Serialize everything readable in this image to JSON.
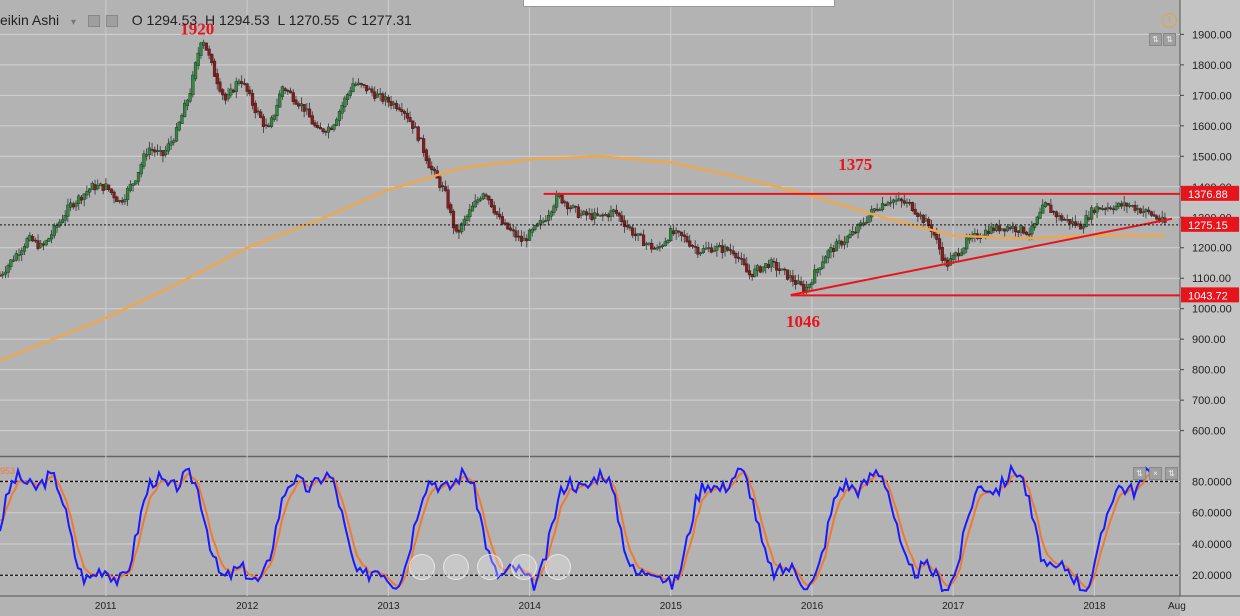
{
  "header": {
    "symbol": "eikin Ashi",
    "open": "O 1294.53",
    "high": "H 1294.53",
    "low": "L 1270.55",
    "close": "C 1277.31"
  },
  "colors": {
    "background": "#b3b3b3",
    "bull_candle": "#2e8b3e",
    "bear_candle": "#8b1a1a",
    "moving_average": "#f0a64a",
    "annotation_red": "#e8141c",
    "stoch_k": "#1a1aff",
    "stoch_d": "#f07a30"
  },
  "chart_data": [
    {
      "type": "candlestick",
      "style": "heikin-ashi",
      "x_range": [
        2010.25,
        2018.55
      ],
      "ylim": [
        520,
        1980
      ],
      "x_ticks": [
        "2011",
        "2012",
        "2013",
        "2014",
        "2015",
        "2016",
        "2017",
        "2018",
        "Aug"
      ],
      "y_ticks": [
        "600.00",
        "700.00",
        "800.00",
        "900.00",
        "1000.00",
        "1100.00",
        "1200.00",
        "1300.00",
        "1400.00",
        "1500.00",
        "1600.00",
        "1700.00",
        "1800.00",
        "1900.00"
      ],
      "grid": true,
      "price_path": [
        [
          2010.25,
          1110
        ],
        [
          2010.45,
          1230
        ],
        [
          2010.55,
          1200
        ],
        [
          2010.75,
          1340
        ],
        [
          2010.9,
          1400
        ],
        [
          2011.0,
          1400
        ],
        [
          2011.1,
          1350
        ],
        [
          2011.2,
          1420
        ],
        [
          2011.3,
          1530
        ],
        [
          2011.4,
          1500
        ],
        [
          2011.5,
          1580
        ],
        [
          2011.6,
          1720
        ],
        [
          2011.68,
          1900
        ],
        [
          2011.76,
          1780
        ],
        [
          2011.85,
          1680
        ],
        [
          2011.95,
          1760
        ],
        [
          2012.05,
          1660
        ],
        [
          2012.15,
          1580
        ],
        [
          2012.25,
          1730
        ],
        [
          2012.4,
          1660
        ],
        [
          2012.5,
          1580
        ],
        [
          2012.6,
          1600
        ],
        [
          2012.75,
          1740
        ],
        [
          2012.85,
          1720
        ],
        [
          2012.95,
          1690
        ],
        [
          2013.1,
          1660
        ],
        [
          2013.2,
          1580
        ],
        [
          2013.3,
          1460
        ],
        [
          2013.4,
          1380
        ],
        [
          2013.48,
          1240
        ],
        [
          2013.58,
          1320
        ],
        [
          2013.68,
          1390
        ],
        [
          2013.8,
          1280
        ],
        [
          2013.95,
          1220
        ],
        [
          2014.1,
          1290
        ],
        [
          2014.2,
          1370
        ],
        [
          2014.35,
          1310
        ],
        [
          2014.5,
          1300
        ],
        [
          2014.6,
          1320
        ],
        [
          2014.75,
          1240
        ],
        [
          2014.9,
          1190
        ],
        [
          2015.0,
          1250
        ],
        [
          2015.1,
          1230
        ],
        [
          2015.2,
          1190
        ],
        [
          2015.3,
          1200
        ],
        [
          2015.45,
          1190
        ],
        [
          2015.55,
          1110
        ],
        [
          2015.7,
          1150
        ],
        [
          2015.85,
          1100
        ],
        [
          2015.95,
          1060
        ],
        [
          2016.1,
          1180
        ],
        [
          2016.3,
          1250
        ],
        [
          2016.45,
          1330
        ],
        [
          2016.55,
          1360
        ],
        [
          2016.7,
          1340
        ],
        [
          2016.85,
          1260
        ],
        [
          2016.95,
          1140
        ],
        [
          2017.1,
          1220
        ],
        [
          2017.25,
          1260
        ],
        [
          2017.4,
          1270
        ],
        [
          2017.55,
          1250
        ],
        [
          2017.65,
          1340
        ],
        [
          2017.75,
          1300
        ],
        [
          2017.9,
          1270
        ],
        [
          2018.0,
          1330
        ],
        [
          2018.1,
          1335
        ],
        [
          2018.25,
          1340
        ],
        [
          2018.4,
          1310
        ],
        [
          2018.5,
          1280
        ]
      ],
      "moving_average": [
        [
          2010.25,
          830
        ],
        [
          2011.0,
          970
        ],
        [
          2011.5,
          1080
        ],
        [
          2012.0,
          1200
        ],
        [
          2012.5,
          1290
        ],
        [
          2013.0,
          1390
        ],
        [
          2013.5,
          1460
        ],
        [
          2014.0,
          1490
        ],
        [
          2014.5,
          1500
        ],
        [
          2015.0,
          1480
        ],
        [
          2015.5,
          1430
        ],
        [
          2016.0,
          1370
        ],
        [
          2016.5,
          1300
        ],
        [
          2017.0,
          1240
        ],
        [
          2017.5,
          1230
        ],
        [
          2018.0,
          1240
        ],
        [
          2018.5,
          1240
        ]
      ],
      "price_labels": [
        {
          "text": "1376.88",
          "value": 1376.88
        },
        {
          "text": "1275.15",
          "value": 1275.15
        },
        {
          "text": "1043.72",
          "value": 1043.72
        }
      ],
      "annotations": [
        {
          "text": "1920",
          "x": 2011.64,
          "y": 1920
        },
        {
          "text": "1375",
          "x": 2016.3,
          "y": 1475
        },
        {
          "text": "1046",
          "x": 2015.93,
          "y": 960
        }
      ],
      "lines": [
        {
          "kind": "horizontal",
          "value": 1376.88,
          "from": 2014.1,
          "to": 2018.55
        },
        {
          "kind": "horizontal",
          "value": 1043.72,
          "from": 2015.85,
          "to": 2018.55
        },
        {
          "kind": "trendline",
          "from": [
            2015.85,
            1045
          ],
          "to": [
            2018.55,
            1295
          ]
        },
        {
          "kind": "dotted-horizontal",
          "value": 1275.15
        }
      ]
    },
    {
      "type": "line",
      "name": "stochastic",
      "ylim": [
        8,
        95
      ],
      "y_ticks": [
        "20.0000",
        "40.0000",
        "60.0000",
        "80.0000"
      ],
      "levels": [
        20,
        80
      ],
      "label": "953"
    }
  ],
  "icons": [
    "settings-icon",
    "eye-icon",
    "alert-clock-icon",
    "arrows-icon"
  ],
  "controls": [
    "scroll-left",
    "scroll-back",
    "reset",
    "scroll-forward",
    "scroll-right"
  ]
}
